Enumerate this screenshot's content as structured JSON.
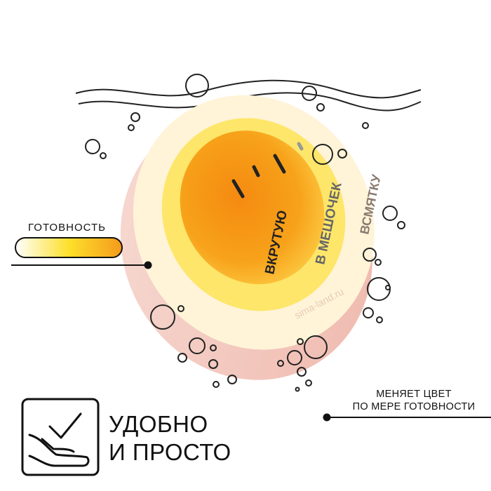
{
  "egg": {
    "scale_labels": [
      "ВКРУТУЮ",
      "В МЕШОЧЕК",
      "ВСМЯТКУ"
    ],
    "watermark": "sima-land.ru",
    "colors": {
      "yolk": "#f7a21a",
      "white": "#fff7df",
      "shell": "#f4c8c0",
      "ring": "#fde36a"
    }
  },
  "readiness": {
    "label": "ГОТОВНОСТЬ",
    "gradient": [
      "#ffffff",
      "#fde02a",
      "#f59a1c"
    ]
  },
  "feature_note": {
    "line1": "МЕНЯЕТ ЦВЕТ",
    "line2": "ПО МЕРЕ ГОТОВНОСТИ"
  },
  "headline": {
    "line1": "УДОБНО",
    "line2": "И ПРОСТО",
    "icon": "hand-check-icon"
  }
}
